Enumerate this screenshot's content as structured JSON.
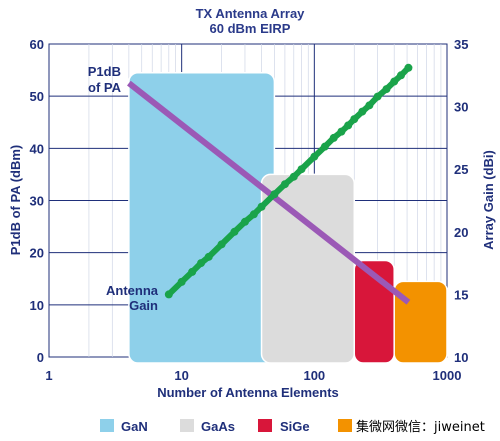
{
  "chart_data": {
    "type": "line",
    "title": "TX Antenna Array",
    "subtitle": "60 dBm EIRP",
    "xlabel": "Number of Antenna Elements",
    "ylabel_left": "P1dB of PA (dBm)",
    "ylabel_right": "Array Gain (dBi)",
    "x_scale": "log",
    "xlim": [
      1,
      1000
    ],
    "ylim_left": [
      0,
      60
    ],
    "ylim_right": [
      10,
      35
    ],
    "x_ticks": [
      "1",
      "10",
      "100",
      "1000"
    ],
    "y_ticks_left": [
      "0",
      "10",
      "20",
      "30",
      "40",
      "50",
      "60"
    ],
    "y_ticks_right": [
      "10",
      "15",
      "20",
      "25",
      "30",
      "35"
    ],
    "grid": true,
    "series": [
      {
        "name": "P1dB of PA",
        "axis": "left",
        "color": "#9b59b6",
        "x": [
          4,
          512
        ],
        "y": [
          52.5,
          10.5
        ]
      },
      {
        "name": "Antenna Gain",
        "axis": "right",
        "color": "#1aa34a",
        "x": [
          8,
          10,
          12,
          14,
          16,
          20,
          25,
          30,
          35,
          40,
          50,
          60,
          70,
          80,
          100,
          120,
          140,
          160,
          180,
          200,
          230,
          260,
          300,
          350,
          400,
          450,
          512
        ],
        "y": [
          15.0,
          16.0,
          16.8,
          17.5,
          18.0,
          19.0,
          20.0,
          20.8,
          21.4,
          22.0,
          23.0,
          23.8,
          24.4,
          25.0,
          26.0,
          26.8,
          27.5,
          28.0,
          28.5,
          29.0,
          29.6,
          30.1,
          30.8,
          31.4,
          32.0,
          32.5,
          33.1
        ]
      }
    ],
    "regions": [
      {
        "name": "GaN",
        "color": "#8ed0ea",
        "x": [
          4,
          50
        ],
        "y": [
          0,
          54.5
        ]
      },
      {
        "name": "GaAs",
        "color": "#dcdcdc",
        "x": [
          40,
          200
        ],
        "y": [
          0,
          35
        ]
      },
      {
        "name": "SiGe",
        "color": "#d8163a",
        "x": [
          200,
          400
        ],
        "y": [
          0,
          18.5
        ]
      },
      {
        "name": "",
        "color": "#f39200",
        "x": [
          400,
          1000
        ],
        "y": [
          0,
          14.5
        ]
      }
    ],
    "annotations": [
      {
        "text_lines": [
          "P1dB",
          "of PA"
        ],
        "color": "#1f2f7a"
      },
      {
        "text_lines": [
          "Antenna",
          "Gain"
        ],
        "color": "#1f2f7a"
      }
    ],
    "legend": {
      "placement": "bottom",
      "items": [
        {
          "label": "GaN",
          "color": "#8ed0ea"
        },
        {
          "label": "GaAs",
          "color": "#dcdcdc"
        },
        {
          "label": "SiGe",
          "color": "#d8163a"
        },
        {
          "label": "",
          "color": "#f39200"
        }
      ]
    }
  },
  "watermark": "集微网微信：jiweinet"
}
